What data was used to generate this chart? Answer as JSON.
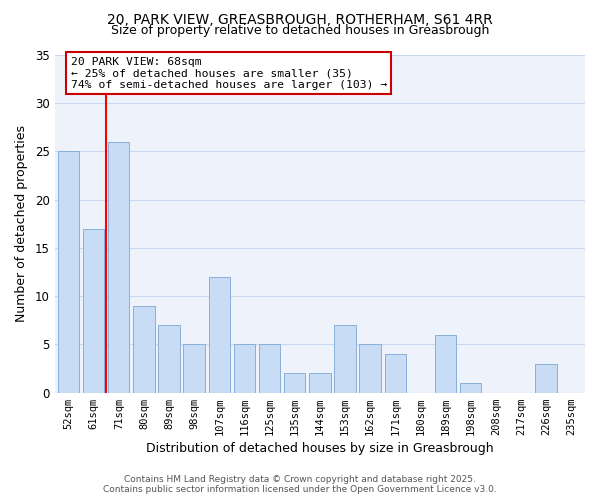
{
  "title1": "20, PARK VIEW, GREASBROUGH, ROTHERHAM, S61 4RR",
  "title2": "Size of property relative to detached houses in Greasbrough",
  "xlabel": "Distribution of detached houses by size in Greasbrough",
  "ylabel": "Number of detached properties",
  "bar_color": "#c8dcf5",
  "bar_edge_color": "#8ab0d8",
  "categories": [
    "52sqm",
    "61sqm",
    "71sqm",
    "80sqm",
    "89sqm",
    "98sqm",
    "107sqm",
    "116sqm",
    "125sqm",
    "135sqm",
    "144sqm",
    "153sqm",
    "162sqm",
    "171sqm",
    "180sqm",
    "189sqm",
    "198sqm",
    "208sqm",
    "217sqm",
    "226sqm",
    "235sqm"
  ],
  "values": [
    25,
    17,
    26,
    9,
    7,
    5,
    12,
    5,
    5,
    2,
    2,
    7,
    5,
    4,
    0,
    6,
    1,
    0,
    0,
    3,
    0
  ],
  "annotation_line1": "20 PARK VIEW: 68sqm",
  "annotation_line2": "← 25% of detached houses are smaller (35)",
  "annotation_line3": "74% of semi-detached houses are larger (103) →",
  "ylim": [
    0,
    35
  ],
  "yticks": [
    0,
    5,
    10,
    15,
    20,
    25,
    30,
    35
  ],
  "background_color": "#eef3fb",
  "grid_color": "#c8d8ee",
  "fig_background": "#ffffff",
  "footer1": "Contains HM Land Registry data © Crown copyright and database right 2025.",
  "footer2": "Contains public sector information licensed under the Open Government Licence v3.0."
}
